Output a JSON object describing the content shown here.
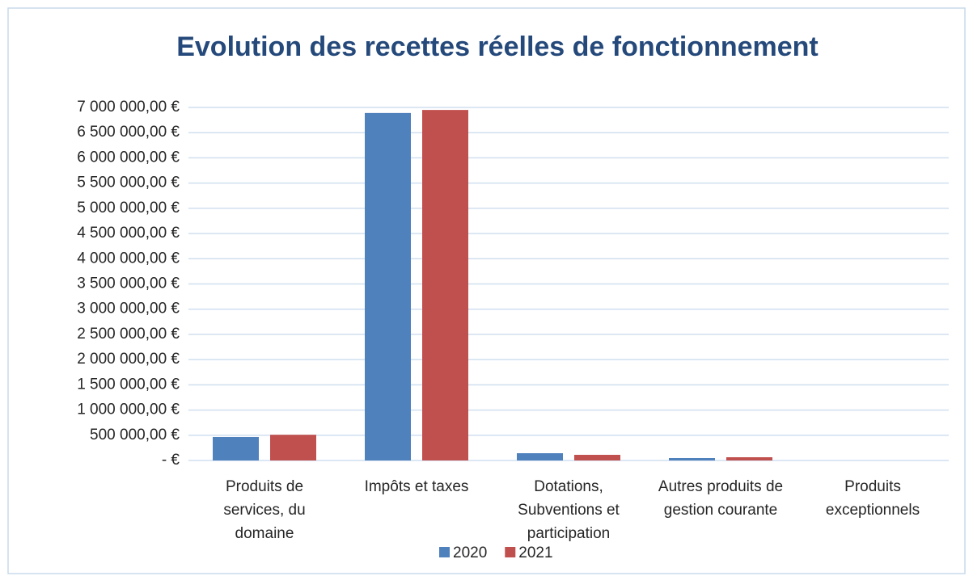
{
  "chart_data": {
    "type": "bar",
    "title": "Evolution des recettes réelles de fonctionnement",
    "categories": [
      "Produits de services, du domaine",
      "Impôts et taxes",
      "Dotations, Subventions et participation",
      "Autres produits de gestion courante",
      "Produits exceptionnels"
    ],
    "series": [
      {
        "name": "2020",
        "color": "#4f81bd",
        "values": [
          465000,
          6890000,
          144000,
          48000,
          0
        ]
      },
      {
        "name": "2021",
        "color": "#c0504d",
        "values": [
          510000,
          6950000,
          112000,
          64000,
          0
        ]
      }
    ],
    "ylim": [
      0,
      7000000
    ],
    "yticks": [
      {
        "value": 0,
        "label": "-  €"
      },
      {
        "value": 500000,
        "label": "500 000,00 €"
      },
      {
        "value": 1000000,
        "label": "1 000 000,00 €"
      },
      {
        "value": 1500000,
        "label": "1 500 000,00 €"
      },
      {
        "value": 2000000,
        "label": "2 000 000,00 €"
      },
      {
        "value": 2500000,
        "label": "2 500 000,00 €"
      },
      {
        "value": 3000000,
        "label": "3 000 000,00 €"
      },
      {
        "value": 3500000,
        "label": "3 500 000,00 €"
      },
      {
        "value": 4000000,
        "label": "4 000 000,00 €"
      },
      {
        "value": 4500000,
        "label": "4 500 000,00 €"
      },
      {
        "value": 5000000,
        "label": "5 000 000,00 €"
      },
      {
        "value": 5500000,
        "label": "5 500 000,00 €"
      },
      {
        "value": 6000000,
        "label": "6 000 000,00 €"
      },
      {
        "value": 6500000,
        "label": "6 500 000,00 €"
      },
      {
        "value": 7000000,
        "label": "7 000 000,00 €"
      }
    ],
    "grid": true,
    "legend": "bottom"
  }
}
